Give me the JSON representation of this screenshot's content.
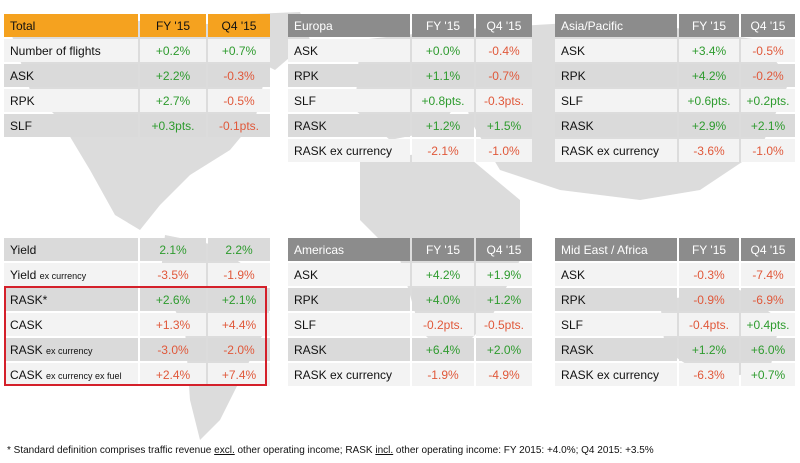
{
  "footnote": {
    "prefix": "* Standard definition comprises traffic revenue ",
    "excl": "excl.",
    "mid": " other operating income;   RASK ",
    "incl": "incl.",
    "suffix": " other operating income: FY 2015: +4.0%; Q4 2015: +3.5%"
  },
  "total": {
    "title": "Total",
    "col1": "FY '15",
    "col2": "Q4 '15",
    "rows": [
      {
        "label": "Number of flights",
        "fy": "+0.2%",
        "q4": "+0.7%"
      },
      {
        "label": "ASK",
        "fy": "+2.2%",
        "q4": "-0.3%"
      },
      {
        "label": "RPK",
        "fy": "+2.7%",
        "q4": "-0.5%"
      },
      {
        "label": "SLF",
        "fy": "+0.3pts.",
        "q4": "-0.1pts."
      }
    ]
  },
  "yield": {
    "rows": [
      {
        "label": "Yield",
        "fy": "2.1%",
        "q4": "2.2%"
      },
      {
        "label": "Yield",
        "sub": "ex currency",
        "fy": "-3.5%",
        "q4": "-1.9%"
      },
      {
        "label": "RASK*",
        "fy": "+2.6%",
        "q4": "+2.1%"
      },
      {
        "label": "CASK",
        "fy": "+1.3%",
        "q4": "+4.4%"
      },
      {
        "label": "RASK",
        "sub": "ex currency",
        "fy": "-3.0%",
        "q4": "-2.0%"
      },
      {
        "label": "CASK",
        "sub": "ex currency ex fuel",
        "fy": "+2.4%",
        "q4": "+7.4%"
      }
    ]
  },
  "europa": {
    "title": "Europa",
    "col1": "FY '15",
    "col2": "Q4 '15",
    "rows": [
      {
        "label": "ASK",
        "fy": "+0.0%",
        "q4": "-0.4%"
      },
      {
        "label": "RPK",
        "fy": "+1.1%",
        "q4": "-0.7%"
      },
      {
        "label": "SLF",
        "fy": "+0.8pts.",
        "q4": "-0.3pts."
      },
      {
        "label": "RASK",
        "fy": "+1.2%",
        "q4": "+1.5%"
      },
      {
        "label": "RASK ex currency",
        "fy": "-2.1%",
        "q4": "-1.0%"
      }
    ]
  },
  "asia": {
    "title": "Asia/Pacific",
    "col1": "FY '15",
    "col2": "Q4 '15",
    "rows": [
      {
        "label": "ASK",
        "fy": "+3.4%",
        "q4": "-0.5%"
      },
      {
        "label": "RPK",
        "fy": "+4.2%",
        "q4": "-0.2%"
      },
      {
        "label": "SLF",
        "fy": "+0.6pts.",
        "q4": "+0.2pts."
      },
      {
        "label": "RASK",
        "fy": "+2.9%",
        "q4": "+2.1%"
      },
      {
        "label": "RASK ex currency",
        "fy": "-3.6%",
        "q4": "-1.0%"
      }
    ]
  },
  "americas": {
    "title": "Americas",
    "col1": "FY '15",
    "col2": "Q4 '15",
    "rows": [
      {
        "label": "ASK",
        "fy": "+4.2%",
        "q4": "+1.9%"
      },
      {
        "label": "RPK",
        "fy": "+4.0%",
        "q4": "+1.2%"
      },
      {
        "label": "SLF",
        "fy": "-0.2pts.",
        "q4": "-0.5pts."
      },
      {
        "label": "RASK",
        "fy": "+6.4%",
        "q4": "+2.0%"
      },
      {
        "label": "RASK ex currency",
        "fy": "-1.9%",
        "q4": "-4.9%"
      }
    ]
  },
  "mideast": {
    "title": "Mid East / Africa",
    "col1": "FY '15",
    "col2": "Q4 '15",
    "rows": [
      {
        "label": "ASK",
        "fy": "-0.3%",
        "q4": "-7.4%"
      },
      {
        "label": "RPK",
        "fy": "-0.9%",
        "q4": "-6.9%"
      },
      {
        "label": "SLF",
        "fy": "-0.4pts.",
        "q4": "+0.4pts."
      },
      {
        "label": "RASK",
        "fy": "+1.2%",
        "q4": "+6.0%"
      },
      {
        "label": "RASK ex currency",
        "fy": "-6.3%",
        "q4": "+0.7%"
      }
    ]
  },
  "colors": {
    "positive": "#2e9b2e",
    "negative": "#e0583a",
    "header_orange": "#f5a21f",
    "header_gray": "#8c8c8c",
    "highlight_border": "#d4202a"
  }
}
